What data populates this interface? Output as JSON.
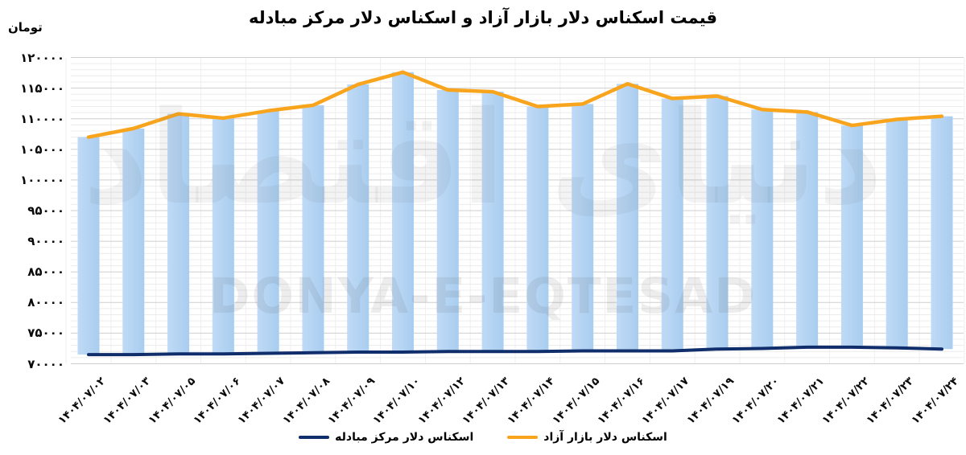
{
  "title": "قیمت اسکناس دلار بازار آزاد و اسکناس دلار مرکز مبادله",
  "y_axis_unit": "تومان",
  "watermark": {
    "text_persian": "دنیای اقتصاد",
    "text_latin": "DONYA-E-EQTESAD"
  },
  "legend": {
    "items": [
      {
        "label": "اسکناس دلار مرکز مبادله",
        "color": "#102E6B"
      },
      {
        "label": "اسکناس دلار بازار آزاد",
        "color": "#F8A51D"
      }
    ]
  },
  "chart_data": {
    "type": "bar",
    "title": "قیمت اسکناس دلار بازار آزاد و اسکناس دلار مرکز مبادله",
    "ylabel": "تومان",
    "ylim": [
      70000,
      120000
    ],
    "ytick_step": 5000,
    "ytick_minor_step": 1000,
    "ytick_values": [
      120000,
      115000,
      110000,
      105000,
      100000,
      95000,
      90000,
      85000,
      80000,
      75000,
      70000
    ],
    "ytick_labels": [
      "۱۲۰۰۰۰",
      "۱۱۵۰۰۰",
      "۱۱۰۰۰۰",
      "۱۰۵۰۰۰",
      "۱۰۰۰۰۰",
      "۹۵۰۰۰",
      "۹۰۰۰۰",
      "۸۵۰۰۰",
      "۸۰۰۰۰",
      "۷۵۰۰۰",
      "۷۰۰۰۰"
    ],
    "grid": {
      "horizontal": true,
      "vertical": true
    },
    "legend_position": "bottom",
    "categories": [
      "۱۴۰۴/۰۷/۰۲",
      "۱۴۰۴/۰۷/۰۳",
      "۱۴۰۴/۰۷/۰۵",
      "۱۴۰۴/۰۷/۰۶",
      "۱۴۰۴/۰۷/۰۷",
      "۱۴۰۴/۰۷/۰۸",
      "۱۴۰۴/۰۷/۰۹",
      "۱۴۰۴/۰۷/۱۰",
      "۱۴۰۴/۰۷/۱۲",
      "۱۴۰۴/۰۷/۱۳",
      "۱۴۰۴/۰۷/۱۴",
      "۱۴۰۴/۰۷/۱۵",
      "۱۴۰۴/۰۷/۱۶",
      "۱۴۰۴/۰۷/۱۷",
      "۱۴۰۴/۰۷/۱۹",
      "۱۴۰۴/۰۷/۲۰",
      "۱۴۰۴/۰۷/۲۱",
      "۱۴۰۴/۰۷/۲۲",
      "۱۴۰۴/۰۷/۲۳",
      "۱۴۰۴/۰۷/۲۴"
    ],
    "series": [
      {
        "name": "اسکناس دلار بازار آزاد",
        "type": "line",
        "color": "#F8A51D",
        "values": [
          107000,
          108400,
          110800,
          110100,
          111300,
          112200,
          115600,
          117600,
          114700,
          114400,
          112000,
          112400,
          115700,
          113300,
          113700,
          111500,
          111100,
          108900,
          109900,
          110400
        ]
      },
      {
        "name": "اسکناس دلار مرکز مبادله",
        "type": "line",
        "color": "#102E6B",
        "values": [
          71500,
          71500,
          71600,
          71600,
          71700,
          71800,
          71900,
          71900,
          72000,
          72000,
          72000,
          72100,
          72100,
          72100,
          72400,
          72500,
          72700,
          72700,
          72600,
          72400
        ]
      }
    ],
    "bars": {
      "description": "bars span from exchange-center value up to free-market value",
      "lower_series": "اسکناس دلار مرکز مبادله",
      "upper_series": "اسکناس دلار بازار آزاد",
      "color": "#B4D5F3"
    }
  }
}
